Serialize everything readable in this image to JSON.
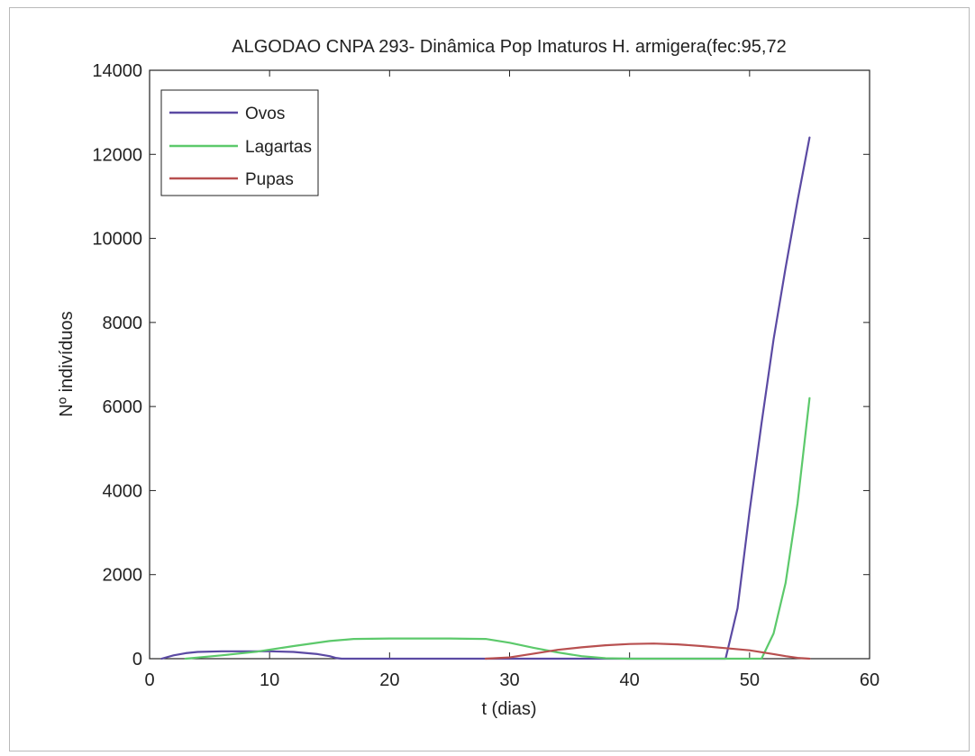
{
  "chart_data": {
    "type": "line",
    "title": "ALGODAO CNPA 293- Dinâmica Pop Imaturos H. armigera(fec:95,72",
    "xlabel": "t (dias)",
    "ylabel": "Nº indivíduos",
    "xlim": [
      0,
      60
    ],
    "ylim": [
      0,
      14000
    ],
    "xticks": [
      0,
      10,
      20,
      30,
      40,
      50,
      60
    ],
    "yticks": [
      0,
      2000,
      4000,
      6000,
      8000,
      10000,
      12000,
      14000
    ],
    "grid": false,
    "legend_position": "top-left",
    "series": [
      {
        "name": "Ovos",
        "color": "#5b4aa3",
        "x": [
          1,
          2,
          3,
          4,
          6,
          8,
          10,
          12,
          14,
          15,
          15.5,
          16,
          48,
          48.5,
          49,
          50,
          51,
          52,
          53,
          54,
          55
        ],
        "y": [
          0,
          80,
          130,
          160,
          175,
          175,
          175,
          160,
          110,
          60,
          20,
          0,
          0,
          600,
          1200,
          3500,
          5600,
          7600,
          9300,
          10900,
          12400
        ]
      },
      {
        "name": "Lagartas",
        "color": "#5cc96b",
        "x": [
          3,
          6,
          9,
          12,
          15,
          17,
          20,
          25,
          28,
          30,
          32,
          34,
          36,
          38,
          40,
          51,
          52,
          53,
          54,
          55
        ],
        "y": [
          0,
          80,
          170,
          300,
          420,
          470,
          480,
          480,
          470,
          380,
          260,
          150,
          60,
          10,
          0,
          0,
          600,
          1800,
          3700,
          6200
        ]
      },
      {
        "name": "Pupas",
        "color": "#b85050",
        "x": [
          28,
          30,
          32,
          34,
          36,
          38,
          40,
          42,
          44,
          46,
          48,
          50,
          52,
          53,
          54,
          55
        ],
        "y": [
          0,
          30,
          120,
          210,
          270,
          320,
          350,
          360,
          340,
          300,
          250,
          200,
          110,
          60,
          20,
          0
        ]
      }
    ]
  }
}
